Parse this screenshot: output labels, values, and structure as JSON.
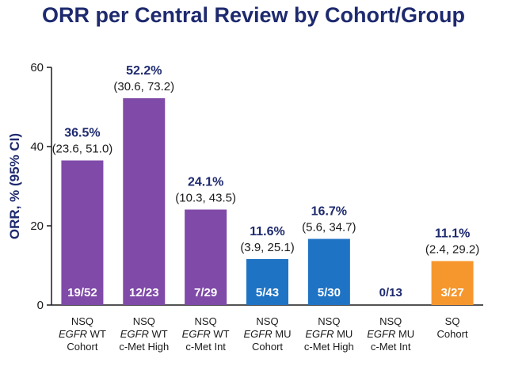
{
  "chart_data": {
    "type": "bar",
    "title": "ORR per Central Review by Cohort/Group",
    "ylabel": "ORR, % (95% CI)",
    "ylim": [
      0,
      60
    ],
    "yticks": [
      0,
      20,
      40,
      60
    ],
    "grid": false,
    "colors": {
      "purple": "#7f4aa8",
      "blue": "#1f73c4",
      "orange": "#f6972e",
      "axis": "#1a1a1a",
      "title": "#1e2a6e"
    },
    "bars": [
      {
        "cat1_a": "NSQ",
        "cat2_i": "EGFR",
        "cat2_b": " WT",
        "cat3": "Cohort",
        "value": 36.5,
        "value_label": "36.5%",
        "ci": "(23.6, 51.0)",
        "n_label": "19/52",
        "color": "purple"
      },
      {
        "cat1_a": "NSQ",
        "cat2_i": "EGFR",
        "cat2_b": " WT",
        "cat3": "c-Met High",
        "value": 52.2,
        "value_label": "52.2%",
        "ci": "(30.6, 73.2)",
        "n_label": "12/23",
        "color": "purple"
      },
      {
        "cat1_a": "NSQ",
        "cat2_i": "EGFR",
        "cat2_b": " WT",
        "cat3": "c-Met Int",
        "value": 24.1,
        "value_label": "24.1%",
        "ci": "(10.3, 43.5)",
        "n_label": "7/29",
        "color": "purple"
      },
      {
        "cat1_a": "NSQ",
        "cat2_i": "EGFR",
        "cat2_b": " MU",
        "cat3": "Cohort",
        "value": 11.6,
        "value_label": "11.6%",
        "ci": "(3.9, 25.1)",
        "n_label": "5/43",
        "color": "blue"
      },
      {
        "cat1_a": "NSQ",
        "cat2_i": "EGFR",
        "cat2_b": " MU",
        "cat3": "c-Met High",
        "value": 16.7,
        "value_label": "16.7%",
        "ci": "(5.6, 34.7)",
        "n_label": "5/30",
        "color": "blue"
      },
      {
        "cat1_a": "NSQ",
        "cat2_i": "EGFR",
        "cat2_b": " MU",
        "cat3": "c-Met Int",
        "value": 0,
        "value_label": "",
        "ci": "",
        "n_label": "0/13",
        "color": "blue"
      },
      {
        "cat1_a": "SQ",
        "cat2_i": "",
        "cat2_b": "Cohort",
        "cat3": "",
        "value": 11.1,
        "value_label": "11.1%",
        "ci": "(2.4, 29.2)",
        "n_label": "3/27",
        "color": "orange"
      }
    ]
  }
}
